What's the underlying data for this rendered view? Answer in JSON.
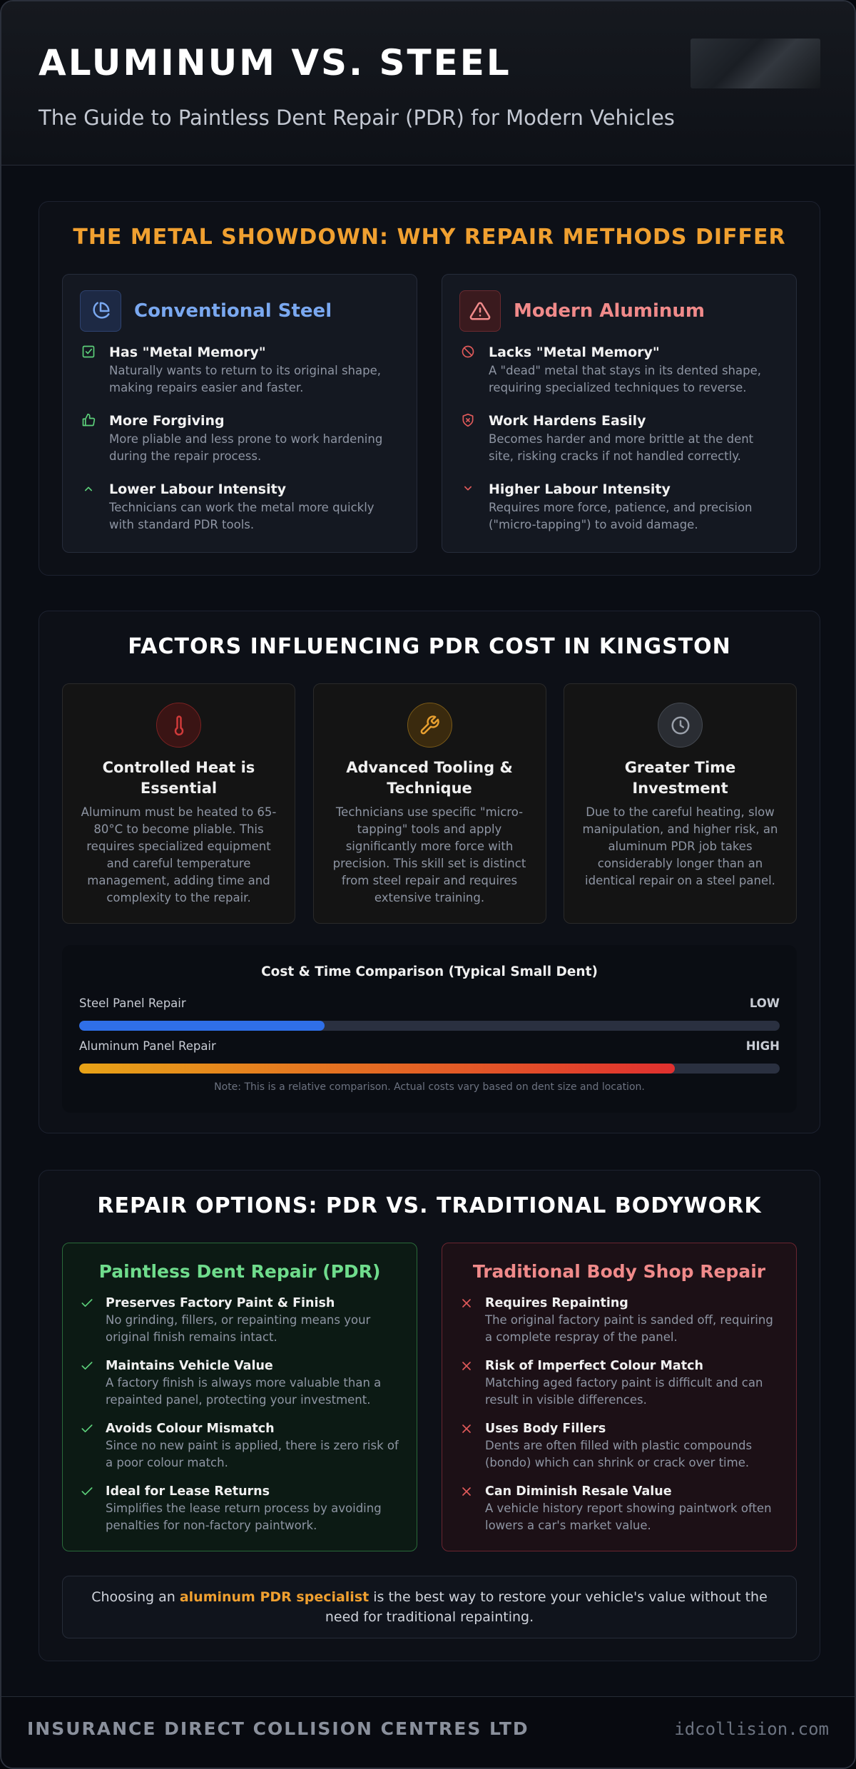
{
  "header": {
    "title": "ALUMINUM VS. STEEL",
    "subtitle": "The Guide to Paintless Dent Repair (PDR) for Modern Vehicles"
  },
  "showdown": {
    "heading": "THE METAL SHOWDOWN: WHY REPAIR METHODS DIFFER",
    "cards": [
      {
        "title": "Conventional Steel",
        "items": [
          {
            "title": "Has \"Metal Memory\"",
            "text": "Naturally wants to return to its original shape, making repairs easier and faster."
          },
          {
            "title": "More Forgiving",
            "text": "More pliable and less prone to work hardening during the repair process."
          },
          {
            "title": "Lower Labour Intensity",
            "text": "Technicians can work the metal more quickly with standard PDR tools."
          }
        ]
      },
      {
        "title": "Modern Aluminum",
        "items": [
          {
            "title": "Lacks \"Metal Memory\"",
            "text": "A \"dead\" metal that stays in its dented shape, requiring specialized techniques to reverse."
          },
          {
            "title": "Work Hardens Easily",
            "text": "Becomes harder and more brittle at the dent site, risking cracks if not handled correctly."
          },
          {
            "title": "Higher Labour Intensity",
            "text": "Requires more force, patience, and precision (\"micro-tapping\") to avoid damage."
          }
        ]
      }
    ]
  },
  "factors": {
    "heading": "FACTORS INFLUENCING PDR COST IN KINGSTON",
    "cards": [
      {
        "title": "Controlled Heat is Essential",
        "text": "Aluminum must be heated to 65-80°C to become pliable. This requires specialized equipment and careful temperature management, adding time and complexity to the repair."
      },
      {
        "title": "Advanced Tooling & Technique",
        "text": "Technicians use specific \"micro-tapping\" tools and apply significantly more force with precision. This skill set is distinct from steel repair and requires extensive training."
      },
      {
        "title": "Greater Time Investment",
        "text": "Due to the careful heating, slow manipulation, and higher risk, an aluminum PDR job takes considerably longer than an identical repair on a steel panel."
      }
    ],
    "comparison": {
      "title": "Cost & Time Comparison (Typical Small Dent)",
      "bars": [
        {
          "label": "Steel Panel Repair",
          "level": "LOW",
          "value": 35
        },
        {
          "label": "Aluminum Panel Repair",
          "level": "HIGH",
          "value": 85
        }
      ],
      "note": "Note: This is a relative comparison. Actual costs vary based on dent size and location."
    }
  },
  "options": {
    "heading": "REPAIR OPTIONS: PDR VS. TRADITIONAL BODYWORK",
    "columns": [
      {
        "title": "Paintless Dent Repair (PDR)",
        "items": [
          {
            "title": "Preserves Factory Paint & Finish",
            "text": "No grinding, fillers, or repainting means your original finish remains intact."
          },
          {
            "title": "Maintains Vehicle Value",
            "text": "A factory finish is always more valuable than a repainted panel, protecting your investment."
          },
          {
            "title": "Avoids Colour Mismatch",
            "text": "Since no new paint is applied, there is zero risk of a poor colour match."
          },
          {
            "title": "Ideal for Lease Returns",
            "text": "Simplifies the lease return process by avoiding penalties for non-factory paintwork."
          }
        ]
      },
      {
        "title": "Traditional Body Shop Repair",
        "items": [
          {
            "title": "Requires Repainting",
            "text": "The original factory paint is sanded off, requiring a complete respray of the panel."
          },
          {
            "title": "Risk of Imperfect Colour Match",
            "text": "Matching aged factory paint is difficult and can result in visible differences."
          },
          {
            "title": "Uses Body Fillers",
            "text": "Dents are often filled with plastic compounds (bondo) which can shrink or crack over time."
          },
          {
            "title": "Can Diminish Resale Value",
            "text": "A vehicle history report showing paintwork often lowers a car's market value."
          }
        ]
      }
    ],
    "conclusion": [
      "Choosing an",
      "aluminum PDR specialist",
      "is the best way to restore your vehicle's value without the need for traditional repainting."
    ]
  },
  "footer": {
    "company": "INSURANCE DIRECT COLLISION CENTRES LTD",
    "website": "idcollision.com"
  }
}
